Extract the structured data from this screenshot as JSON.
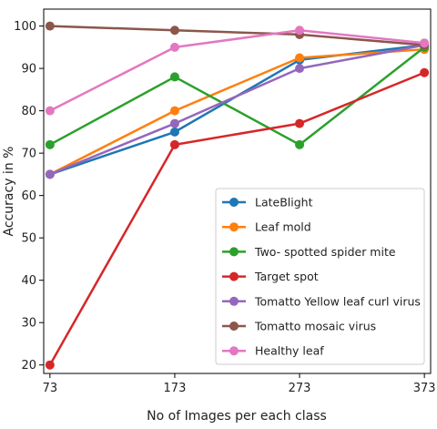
{
  "chart_data": {
    "type": "line",
    "xlabel": "No of Images per each class",
    "ylabel": "Accuracy in %",
    "x": [
      73,
      173,
      273,
      373
    ],
    "x_ticks": [
      "73",
      "173",
      "273",
      "373"
    ],
    "y_ticks": [
      "20",
      "30",
      "40",
      "50",
      "60",
      "70",
      "80",
      "90",
      "100"
    ],
    "ylim": [
      18,
      104
    ],
    "grid": false,
    "legend_position": "lower-right",
    "series": [
      {
        "name": "LateBlight",
        "color": "#1f77b4",
        "values": [
          65,
          75,
          92,
          95.5
        ]
      },
      {
        "name": "Leaf mold",
        "color": "#ff7f0e",
        "values": [
          65,
          80,
          92.5,
          94.5
        ]
      },
      {
        "name": "Two- spotted spider mite",
        "color": "#2ca02c",
        "values": [
          72,
          88,
          72,
          95
        ]
      },
      {
        "name": "Target spot",
        "color": "#d62728",
        "values": [
          20,
          72,
          77,
          89
        ]
      },
      {
        "name": "Tomatto Yellow leaf curl virus",
        "color": "#9467bd",
        "values": [
          65,
          77,
          90,
          95.5
        ]
      },
      {
        "name": "Tomatto mosaic virus",
        "color": "#8c564b",
        "values": [
          100,
          99,
          98,
          95.5
        ]
      },
      {
        "name": "Healthy leaf",
        "color": "#e377c2",
        "values": [
          80,
          95,
          99,
          96
        ]
      }
    ]
  }
}
